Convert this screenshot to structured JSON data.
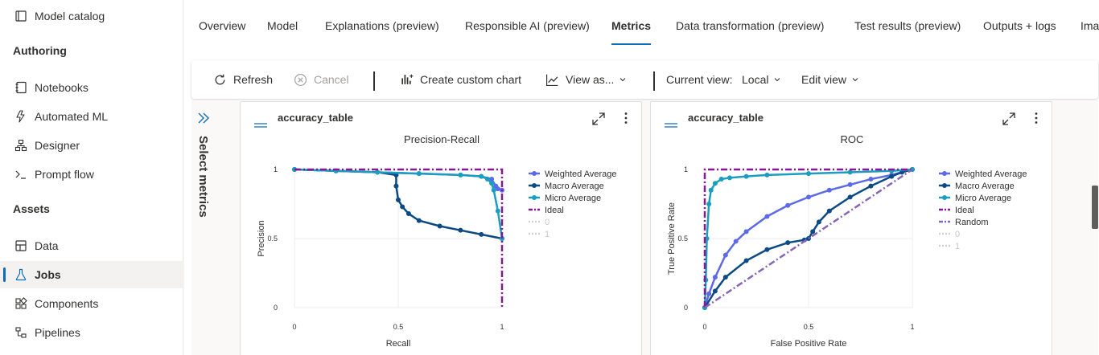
{
  "sidebar": {
    "top_item": {
      "label": "Model catalog",
      "icon": "catalog-icon"
    },
    "sections": [
      {
        "label": "Authoring",
        "items": [
          {
            "label": "Notebooks",
            "icon": "notebook-icon"
          },
          {
            "label": "Automated ML",
            "icon": "automl-icon"
          },
          {
            "label": "Designer",
            "icon": "designer-icon"
          },
          {
            "label": "Prompt flow",
            "icon": "prompt-icon"
          }
        ]
      },
      {
        "label": "Assets",
        "items": [
          {
            "label": "Data",
            "icon": "data-icon"
          },
          {
            "label": "Jobs",
            "icon": "flask-icon",
            "active": true
          },
          {
            "label": "Components",
            "icon": "components-icon"
          },
          {
            "label": "Pipelines",
            "icon": "pipeline-icon"
          }
        ]
      }
    ]
  },
  "tabs": [
    "Overview",
    "Model",
    "Explanations (preview)",
    "Responsible AI (preview)",
    "Metrics",
    "Data transformation (preview)",
    "Test results (preview)",
    "Outputs + logs",
    "Ima"
  ],
  "active_tab": "Metrics",
  "toolbar": {
    "refresh": "Refresh",
    "cancel": "Cancel",
    "create_chart": "Create custom chart",
    "view_as": "View as...",
    "current_view_label": "Current view:",
    "current_view_value": "Local",
    "edit_view": "Edit view"
  },
  "metrics_panel": {
    "label": "Select metrics"
  },
  "accent": "#0f6cbd",
  "cards": [
    {
      "title": "accuracy_table"
    },
    {
      "title": "accuracy_table"
    }
  ],
  "chart_data": [
    {
      "type": "line",
      "title": "Precision-Recall",
      "xlabel": "Recall",
      "ylabel": "Precision",
      "xlim": [
        0,
        1
      ],
      "ylim": [
        0,
        1
      ],
      "xticks": [
        "0",
        "0.5",
        "1"
      ],
      "yticks": [
        "0",
        "0.5",
        "1"
      ],
      "legend_position": "right",
      "series": [
        {
          "name": "Weighted Average",
          "color": "#5d6ae8",
          "style": "line-markers",
          "x": [
            0,
            0.2,
            0.4,
            0.6,
            0.8,
            0.9,
            0.95,
            0.97,
            0.98,
            1.0
          ],
          "y": [
            1,
            0.99,
            0.98,
            0.97,
            0.96,
            0.95,
            0.93,
            0.88,
            0.86,
            0.85
          ]
        },
        {
          "name": "Macro Average",
          "color": "#0b4a85",
          "style": "line-markers",
          "x": [
            0,
            0.2,
            0.4,
            0.49,
            0.49,
            0.5,
            0.52,
            0.55,
            0.6,
            0.7,
            0.8,
            0.9,
            1.0
          ],
          "y": [
            1,
            0.99,
            0.98,
            0.96,
            0.88,
            0.78,
            0.73,
            0.68,
            0.63,
            0.59,
            0.56,
            0.53,
            0.5
          ]
        },
        {
          "name": "Micro Average",
          "color": "#1a9ebf",
          "style": "line-markers",
          "x": [
            0,
            0.2,
            0.4,
            0.6,
            0.8,
            0.9,
            0.93,
            0.95,
            0.96,
            0.98,
            1.0
          ],
          "y": [
            1,
            0.99,
            0.98,
            0.97,
            0.96,
            0.95,
            0.93,
            0.9,
            0.85,
            0.7,
            0.5
          ]
        },
        {
          "name": "Ideal",
          "color": "#881798",
          "style": "dash-dot",
          "x": [
            0,
            1,
            1
          ],
          "y": [
            1,
            1,
            0
          ]
        },
        {
          "name": "0",
          "color": "#d0d0d0",
          "style": "dotted",
          "x": [],
          "y": []
        },
        {
          "name": "1",
          "color": "#d0d0d0",
          "style": "dotted",
          "x": [],
          "y": []
        }
      ]
    },
    {
      "type": "line",
      "title": "ROC",
      "xlabel": "False Positive Rate",
      "ylabel": "True Positive Rate",
      "xlim": [
        0,
        1
      ],
      "ylim": [
        0,
        1
      ],
      "xticks": [
        "0",
        "0.5",
        "1"
      ],
      "yticks": [
        "0",
        "0.5",
        "1"
      ],
      "legend_position": "right",
      "series": [
        {
          "name": "Weighted Average",
          "color": "#5d6ae8",
          "style": "line-markers",
          "x": [
            0,
            0.02,
            0.05,
            0.1,
            0.15,
            0.2,
            0.3,
            0.4,
            0.5,
            0.6,
            0.7,
            0.8,
            0.9,
            1.0
          ],
          "y": [
            0,
            0.1,
            0.22,
            0.38,
            0.48,
            0.55,
            0.66,
            0.74,
            0.8,
            0.85,
            0.89,
            0.93,
            0.96,
            1.0
          ]
        },
        {
          "name": "Macro Average",
          "color": "#0b4a85",
          "style": "line-markers",
          "x": [
            0,
            0.05,
            0.1,
            0.2,
            0.3,
            0.4,
            0.48,
            0.5,
            0.52,
            0.55,
            0.6,
            0.7,
            0.8,
            0.9,
            0.95,
            1.0
          ],
          "y": [
            0,
            0.12,
            0.22,
            0.34,
            0.42,
            0.47,
            0.49,
            0.5,
            0.55,
            0.62,
            0.7,
            0.8,
            0.88,
            0.95,
            0.98,
            1.0
          ]
        },
        {
          "name": "Micro Average",
          "color": "#1a9ebf",
          "style": "line-markers",
          "x": [
            0,
            0.005,
            0.01,
            0.02,
            0.03,
            0.05,
            0.08,
            0.12,
            0.2,
            0.3,
            0.5,
            0.7,
            0.9,
            1.0
          ],
          "y": [
            0,
            0.2,
            0.5,
            0.75,
            0.85,
            0.9,
            0.93,
            0.94,
            0.95,
            0.96,
            0.97,
            0.98,
            0.99,
            1.0
          ]
        },
        {
          "name": "Ideal",
          "color": "#881798",
          "style": "dash-dot",
          "x": [
            0,
            0,
            1
          ],
          "y": [
            0,
            1,
            1
          ]
        },
        {
          "name": "Random",
          "color": "#8764b8",
          "style": "dash-dot",
          "x": [
            0,
            1
          ],
          "y": [
            0,
            1
          ]
        },
        {
          "name": "0",
          "color": "#d0d0d0",
          "style": "dotted",
          "x": [],
          "y": []
        },
        {
          "name": "1",
          "color": "#d0d0d0",
          "style": "dotted",
          "x": [],
          "y": []
        }
      ]
    }
  ]
}
